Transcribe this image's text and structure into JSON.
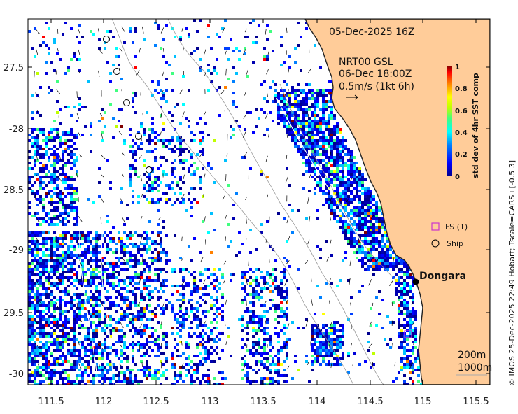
{
  "map": {
    "timestamp": "05-Dec-2025 16Z",
    "model_label": "NRT00 GSL",
    "model_time": "06-Dec 18:00Z",
    "vector_scale": "0.5m/s (1kt 6h)",
    "town": "Dongara",
    "legend": {
      "fs": "FS (1)",
      "ship": "Ship"
    },
    "contours": [
      "200m",
      "1000m"
    ],
    "credit": "© IMOS 25-Dec-2025 22:49 Hobart; Tscale=CARS+[-0.5 3]",
    "colors": {
      "land": "#ffcc99",
      "ocean": "#ffffff",
      "coast": "#222222",
      "fs_marker": "#cc33cc"
    },
    "icons": [
      "ship-circle-icon",
      "fs-square-icon",
      "town-dot-icon",
      "vector-arrow-icon"
    ]
  },
  "colorbar": {
    "label": "std dev of 4hr SST comp",
    "ticks": [
      "1",
      "0.8",
      "0.6",
      "0.4",
      "0.2",
      "0"
    ],
    "range": [
      0,
      1
    ],
    "stops": [
      "#00008f",
      "#0000ff",
      "#0080ff",
      "#00ffff",
      "#40ff80",
      "#c0ff00",
      "#ffff00",
      "#ff8000",
      "#ff0000",
      "#800000"
    ]
  },
  "axes": {
    "lon_ticks": [
      "111.5",
      "112",
      "112.5",
      "113",
      "113.5",
      "114",
      "114.5",
      "115",
      "115.5"
    ],
    "lat_ticks": [
      "27.5",
      "-28",
      "28.5",
      "-29",
      "29.5",
      "-30"
    ]
  }
}
